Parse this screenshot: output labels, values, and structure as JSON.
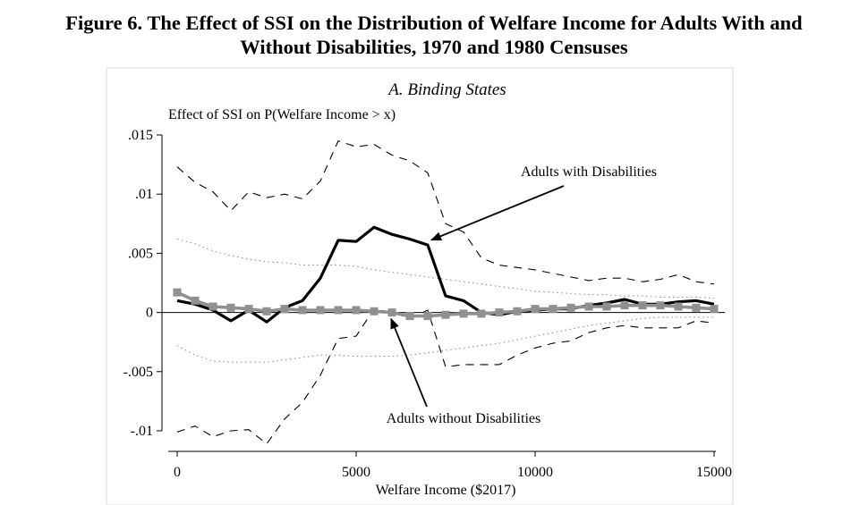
{
  "figure_title": {
    "line1": "Figure 6. The Effect of SSI on the Distribution of Welfare Income for Adults With and",
    "line2": "Without Disabilities, 1970 and 1980 Censuses"
  },
  "chart_data": {
    "type": "line",
    "title": "A. Binding States",
    "xlabel": "Welfare Income ($2017)",
    "ylabel": "Effect of SSI on P(Welfare Income > x)",
    "xlim": [
      0,
      15000
    ],
    "ylim": [
      -0.01,
      0.015
    ],
    "xticks": [
      0,
      5000,
      10000,
      15000
    ],
    "xtick_labels": [
      "0",
      "5000",
      "10000",
      "15000"
    ],
    "yticks": [
      0.015,
      0.01,
      0.005,
      0,
      -0.005,
      -0.01
    ],
    "ytick_labels": [
      ".015",
      ".01",
      ".005",
      "0",
      "-.005",
      "-.01"
    ],
    "grid": false,
    "annotations": [
      {
        "text": "Adults with Disabilities",
        "arrow_to": [
          7000,
          0.0059
        ]
      },
      {
        "text": "Adults without Disabilities",
        "arrow_to": [
          6000,
          0.0
        ]
      }
    ],
    "x": [
      0,
      500,
      1000,
      1500,
      2000,
      2500,
      3000,
      3500,
      4000,
      4500,
      5000,
      5500,
      6000,
      6500,
      7000,
      7500,
      8000,
      8500,
      9000,
      9500,
      10000,
      10500,
      11000,
      11500,
      12000,
      12500,
      13000,
      13500,
      14000,
      14500,
      15000
    ],
    "series": [
      {
        "name": "Adults with Disabilities",
        "values": [
          0.001,
          0.0007,
          0.0002,
          -0.0007,
          0.0002,
          -0.0008,
          0.0004,
          0.001,
          0.0029,
          0.0061,
          0.006,
          0.0072,
          0.0066,
          0.0062,
          0.0057,
          0.0014,
          0.001,
          0.0,
          -0.0002,
          0.0001,
          0.0002,
          0.0003,
          0.0003,
          0.0006,
          0.0008,
          0.0011,
          0.0007,
          0.0007,
          0.0009,
          0.001,
          0.0007
        ]
      },
      {
        "name": "Adults with Disabilities 95% CI upper",
        "values": [
          0.0123,
          0.011,
          0.0102,
          0.0086,
          0.0102,
          0.0097,
          0.01,
          0.0096,
          0.0111,
          0.0145,
          0.014,
          0.0142,
          0.0133,
          0.0128,
          0.0118,
          0.0075,
          0.0068,
          0.0046,
          0.004,
          0.0038,
          0.0036,
          0.0033,
          0.003,
          0.0027,
          0.0029,
          0.0029,
          0.0026,
          0.0028,
          0.0032,
          0.0026,
          0.0024
        ]
      },
      {
        "name": "Adults with Disabilities 95% CI lower",
        "values": [
          -0.0101,
          -0.0096,
          -0.0105,
          -0.01,
          -0.0099,
          -0.0111,
          -0.009,
          -0.0076,
          -0.0053,
          -0.0022,
          -0.002,
          0.0003,
          0.0,
          -0.0005,
          0.0002,
          -0.0046,
          -0.0044,
          -0.0044,
          -0.0044,
          -0.0036,
          -0.003,
          -0.0026,
          -0.0024,
          -0.0017,
          -0.0013,
          -0.0011,
          -0.0013,
          -0.0013,
          -0.0013,
          -0.0007,
          -0.0009
        ]
      },
      {
        "name": "Adults without Disabilities",
        "values": [
          0.0017,
          0.001,
          0.0005,
          0.0004,
          0.0003,
          0.0001,
          0.0003,
          0.0002,
          0.0002,
          0.0002,
          0.0002,
          0.0001,
          0.0,
          -0.0003,
          -0.0003,
          -0.0002,
          -0.0001,
          -0.0001,
          0.0,
          0.0001,
          0.0003,
          0.0003,
          0.0004,
          0.0005,
          0.0005,
          0.0006,
          0.0006,
          0.0006,
          0.0005,
          0.0004,
          0.0003
        ]
      },
      {
        "name": "Adults without Disabilities 95% CI upper",
        "values": [
          0.0062,
          0.0058,
          0.0052,
          0.0048,
          0.0045,
          0.0043,
          0.0042,
          0.004,
          0.004,
          0.004,
          0.0039,
          0.0036,
          0.0034,
          0.0032,
          0.003,
          0.0028,
          0.0026,
          0.0024,
          0.0022,
          0.002,
          0.0018,
          0.0017,
          0.0016,
          0.0015,
          0.0015,
          0.0014,
          0.0014,
          0.0013,
          0.0013,
          0.0013,
          0.0012
        ]
      },
      {
        "name": "Adults without Disabilities 95% CI lower",
        "values": [
          -0.0028,
          -0.0036,
          -0.0041,
          -0.0042,
          -0.0042,
          -0.0042,
          -0.004,
          -0.0038,
          -0.0036,
          -0.0036,
          -0.0037,
          -0.0037,
          -0.0037,
          -0.0036,
          -0.0034,
          -0.0032,
          -0.003,
          -0.0028,
          -0.0026,
          -0.0023,
          -0.002,
          -0.0017,
          -0.0014,
          -0.0011,
          -0.0009,
          -0.0007,
          -0.0005,
          -0.0004,
          -0.0004,
          -0.0004,
          -0.0004
        ]
      }
    ],
    "colors": {
      "disabled": "#000000",
      "not_disabled": "#909090",
      "frame": "#d8d8d8"
    }
  }
}
